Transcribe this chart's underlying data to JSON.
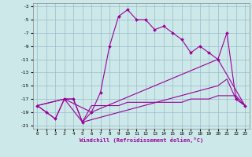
{
  "xlabel": "Windchill (Refroidissement éolien,°C)",
  "bg_color": "#cce8e8",
  "grid_color": "#99bbcc",
  "line_color": "#990099",
  "xlim_min": -0.5,
  "xlim_max": 23.5,
  "ylim_min": -21.5,
  "ylim_max": -2.5,
  "yticks": [
    -3,
    -5,
    -7,
    -9,
    -11,
    -13,
    -15,
    -17,
    -19,
    -21
  ],
  "xticks": [
    0,
    1,
    2,
    3,
    4,
    5,
    6,
    7,
    8,
    9,
    10,
    11,
    12,
    13,
    14,
    15,
    16,
    17,
    18,
    19,
    20,
    21,
    22,
    23
  ],
  "curve1_x": [
    0,
    1,
    2,
    3,
    4,
    5,
    6,
    7,
    8,
    9,
    10,
    11,
    12,
    13,
    14,
    15,
    16,
    17,
    18,
    19,
    20,
    21,
    22,
    23
  ],
  "curve1_y": [
    -18,
    -19,
    -20,
    -17,
    -17,
    -20.5,
    -19,
    -16,
    -9,
    -4.5,
    -3.5,
    -5,
    -5,
    -6.5,
    -6,
    -7,
    -8,
    -10,
    -9,
    -10,
    -11,
    -7,
    -17,
    -18
  ],
  "curve2_x": [
    0,
    1,
    2,
    3,
    4,
    5,
    6,
    7,
    8,
    9,
    10,
    11,
    12,
    13,
    14,
    15,
    16,
    17,
    18,
    19,
    20,
    21,
    22,
    23
  ],
  "curve2_y": [
    -18,
    -19,
    -20,
    -17,
    -17,
    -20.5,
    -18,
    -18,
    -18,
    -18,
    -17.5,
    -17.5,
    -17.5,
    -17.5,
    -17.5,
    -17.5,
    -17.5,
    -17,
    -17,
    -17,
    -16.5,
    -16.5,
    -16.5,
    -18
  ],
  "curve3_x": [
    0,
    3,
    6,
    20,
    23
  ],
  "curve3_y": [
    -18,
    -17,
    -19,
    -11,
    -18
  ],
  "curve4_x": [
    0,
    3,
    5,
    20,
    21,
    22,
    23
  ],
  "curve4_y": [
    -18,
    -17,
    -20.5,
    -15,
    -14,
    -17,
    -18
  ]
}
